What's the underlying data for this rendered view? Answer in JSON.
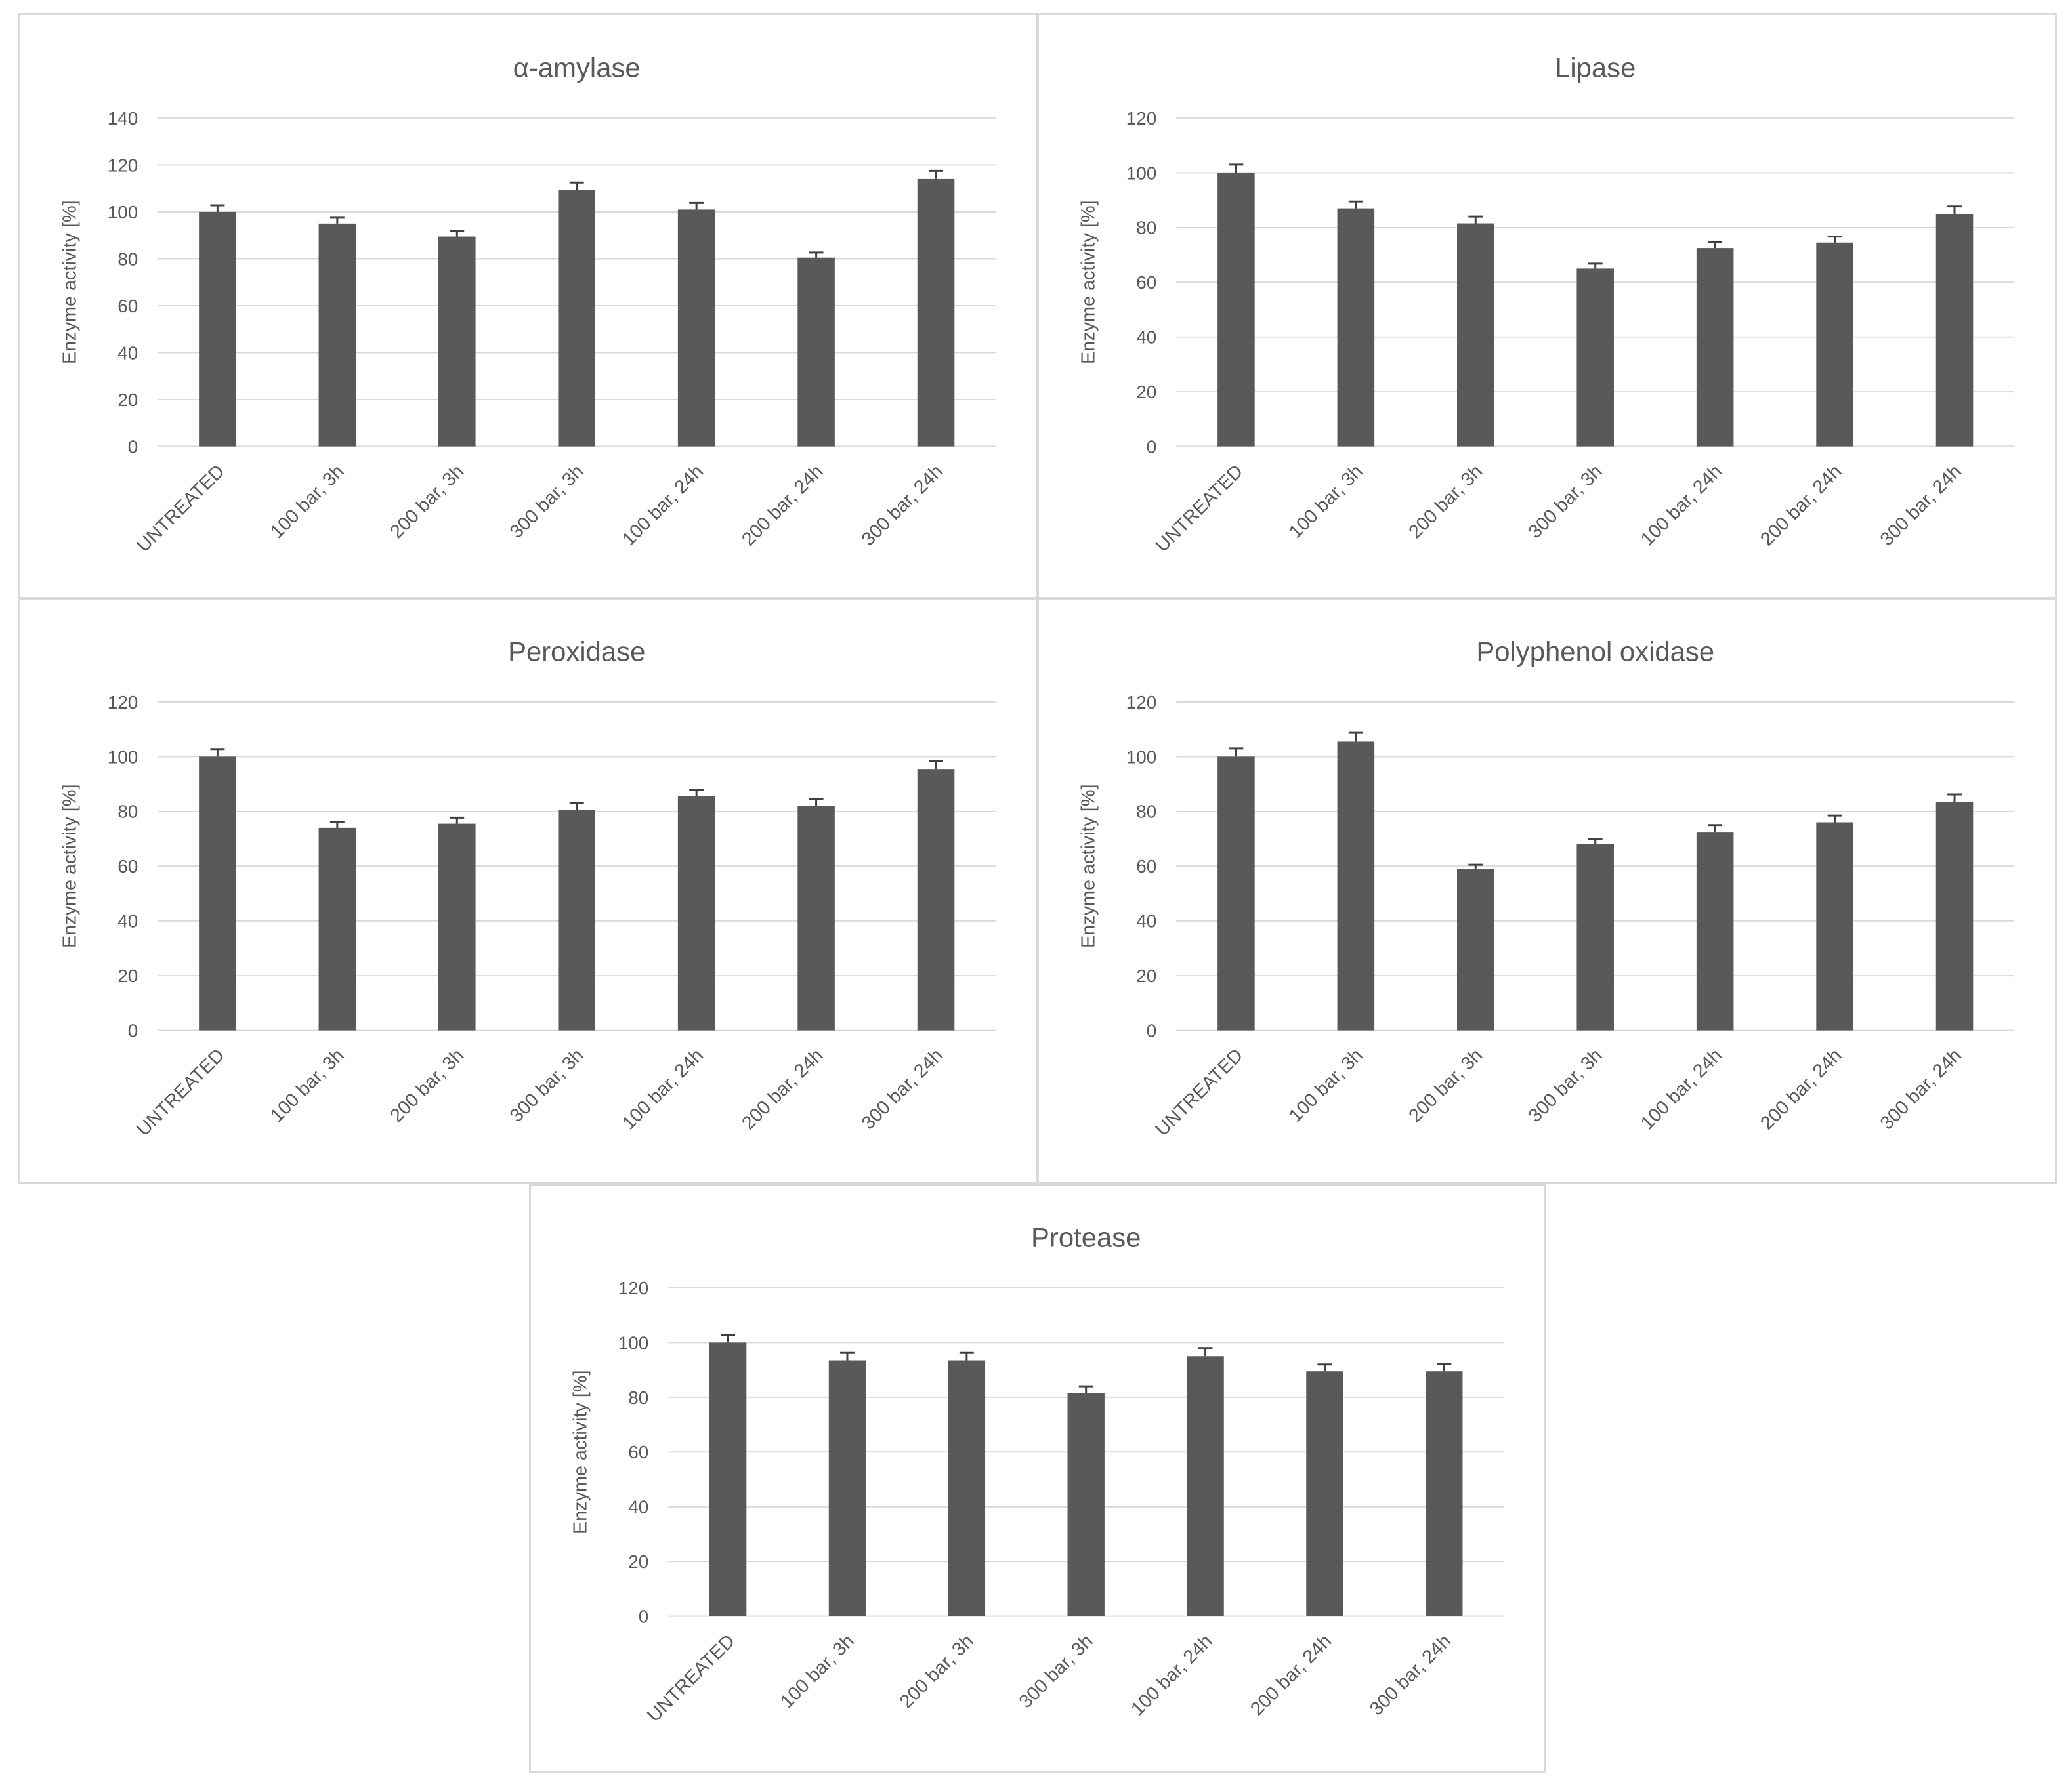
{
  "chart_data": [
    {
      "type": "bar",
      "title": "α-amylase",
      "ylabel": "Enzyme activity [%]",
      "xlabel": "",
      "ylim": [
        0,
        140
      ],
      "yticks": [
        0,
        20,
        40,
        60,
        80,
        100,
        120,
        140
      ],
      "categories": [
        "UNTREATED",
        "100 bar, 3h",
        "200 bar, 3h",
        "300 bar, 3h",
        "100 bar, 24h",
        "200 bar, 24h",
        "300 bar, 24h"
      ],
      "values": [
        100,
        95,
        89.5,
        109.5,
        101,
        80.5,
        114
      ],
      "errors": [
        2.8,
        2.5,
        2.5,
        3,
        2.8,
        2.2,
        3.5
      ],
      "grid": true,
      "bar_color": "#595959",
      "grid_color": "#d9d9d9"
    },
    {
      "type": "bar",
      "title": "Lipase",
      "ylabel": "Enzyme activity [%]",
      "xlabel": "",
      "ylim": [
        0,
        120
      ],
      "yticks": [
        0,
        20,
        40,
        60,
        80,
        100,
        120
      ],
      "categories": [
        "UNTREATED",
        "100 bar, 3h",
        "200 bar, 3h",
        "300 bar, 3h",
        "100 bar, 24h",
        "200 bar, 24h",
        "300 bar, 24h"
      ],
      "values": [
        100,
        87,
        81.5,
        65,
        72.5,
        74.5,
        85
      ],
      "errors": [
        3,
        2.5,
        2.5,
        1.8,
        2.2,
        2.2,
        2.7
      ],
      "grid": true,
      "bar_color": "#595959",
      "grid_color": "#d9d9d9"
    },
    {
      "type": "bar",
      "title": "Peroxidase",
      "ylabel": "Enzyme activity [%]",
      "xlabel": "",
      "ylim": [
        0,
        120
      ],
      "yticks": [
        0,
        20,
        40,
        60,
        80,
        100,
        120
      ],
      "categories": [
        "UNTREATED",
        "100 bar, 3h",
        "200 bar, 3h",
        "300 bar, 3h",
        "100 bar, 24h",
        "200 bar, 24h",
        "300 bar, 24h"
      ],
      "values": [
        100,
        74,
        75.5,
        80.5,
        85.5,
        82,
        95.5
      ],
      "errors": [
        2.8,
        2.2,
        2.2,
        2.5,
        2.5,
        2.5,
        3
      ],
      "grid": true,
      "bar_color": "#595959",
      "grid_color": "#d9d9d9"
    },
    {
      "type": "bar",
      "title": "Polyphenol oxidase",
      "ylabel": "Enzyme activity [%]",
      "xlabel": "",
      "ylim": [
        0,
        120
      ],
      "yticks": [
        0,
        20,
        40,
        60,
        80,
        100,
        120
      ],
      "categories": [
        "UNTREATED",
        "100 bar, 3h",
        "200 bar, 3h",
        "300 bar, 3h",
        "100 bar, 24h",
        "200 bar, 24h",
        "300 bar, 24h"
      ],
      "values": [
        100,
        105.5,
        59,
        68,
        72.5,
        76,
        83.5
      ],
      "errors": [
        3,
        3.2,
        1.5,
        2,
        2.5,
        2.5,
        2.7
      ],
      "grid": true,
      "bar_color": "#595959",
      "grid_color": "#d9d9d9"
    },
    {
      "type": "bar",
      "title": "Protease",
      "ylabel": "Enzyme activity [%]",
      "xlabel": "",
      "ylim": [
        0,
        120
      ],
      "yticks": [
        0,
        20,
        40,
        60,
        80,
        100,
        120
      ],
      "categories": [
        "UNTREATED",
        "100 bar, 3h",
        "200 bar, 3h",
        "300 bar, 3h",
        "100 bar, 24h",
        "200 bar, 24h",
        "300 bar, 24h"
      ],
      "values": [
        100,
        93.5,
        93.5,
        81.5,
        95,
        89.5,
        89.5
      ],
      "errors": [
        2.8,
        2.7,
        2.7,
        2.5,
        3,
        2.5,
        2.7
      ],
      "grid": true,
      "bar_color": "#595959",
      "grid_color": "#d9d9d9"
    }
  ]
}
